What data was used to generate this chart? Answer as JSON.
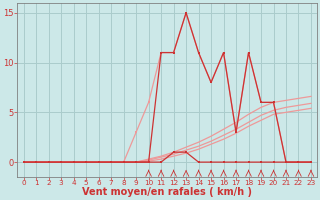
{
  "xlabel": "Vent moyen/en rafales ( km/h )",
  "xlabel_fontsize": 7,
  "bg_color": "#cce8e8",
  "grid_color": "#aacccc",
  "line_color_dark": "#cc3333",
  "line_color_light": "#ee9999",
  "line_color_medium": "#dd7777",
  "xlim": [
    -0.5,
    23.5
  ],
  "ylim": [
    -1.5,
    16
  ],
  "xticks": [
    0,
    1,
    2,
    3,
    4,
    5,
    6,
    7,
    8,
    9,
    10,
    11,
    12,
    13,
    14,
    15,
    16,
    17,
    18,
    19,
    20,
    21,
    22,
    23
  ],
  "yticks": [
    0,
    5,
    10,
    15
  ],
  "x_values": [
    0,
    1,
    2,
    3,
    4,
    5,
    6,
    7,
    8,
    9,
    10,
    11,
    12,
    13,
    14,
    15,
    16,
    17,
    18,
    19,
    20,
    21,
    22,
    23
  ],
  "series_spiky_dark": [
    0,
    0,
    0,
    0,
    0,
    0,
    0,
    0,
    0,
    0,
    0,
    11,
    11,
    15,
    11,
    8,
    11,
    3,
    11,
    6,
    6,
    0,
    0,
    0
  ],
  "series_spiky_light": [
    0,
    0,
    0,
    0,
    0,
    0,
    0,
    0,
    0,
    3,
    6,
    11,
    11,
    15,
    11,
    8,
    11,
    3,
    11,
    6,
    6,
    0,
    0,
    0
  ],
  "series_secondary": [
    0,
    0,
    0,
    0,
    0,
    0,
    0,
    0,
    0,
    0,
    0,
    0,
    1,
    1,
    0,
    0,
    0,
    0,
    0,
    0,
    0,
    0,
    0,
    0
  ],
  "series_linear1": [
    0,
    0,
    0,
    0,
    0,
    0,
    0,
    0,
    0,
    0,
    0.3,
    0.6,
    1.0,
    1.5,
    2.0,
    2.6,
    3.3,
    4.0,
    4.8,
    5.5,
    6.0,
    6.2,
    6.4,
    6.6
  ],
  "series_linear2": [
    0,
    0,
    0,
    0,
    0,
    0,
    0,
    0,
    0,
    0,
    0.2,
    0.5,
    0.8,
    1.2,
    1.6,
    2.1,
    2.7,
    3.3,
    4.0,
    4.7,
    5.2,
    5.5,
    5.7,
    5.9
  ],
  "series_linear3": [
    0,
    0,
    0,
    0,
    0,
    0,
    0,
    0,
    0,
    0,
    0.1,
    0.3,
    0.6,
    0.9,
    1.3,
    1.8,
    2.3,
    2.9,
    3.6,
    4.2,
    4.8,
    5.0,
    5.2,
    5.4
  ]
}
